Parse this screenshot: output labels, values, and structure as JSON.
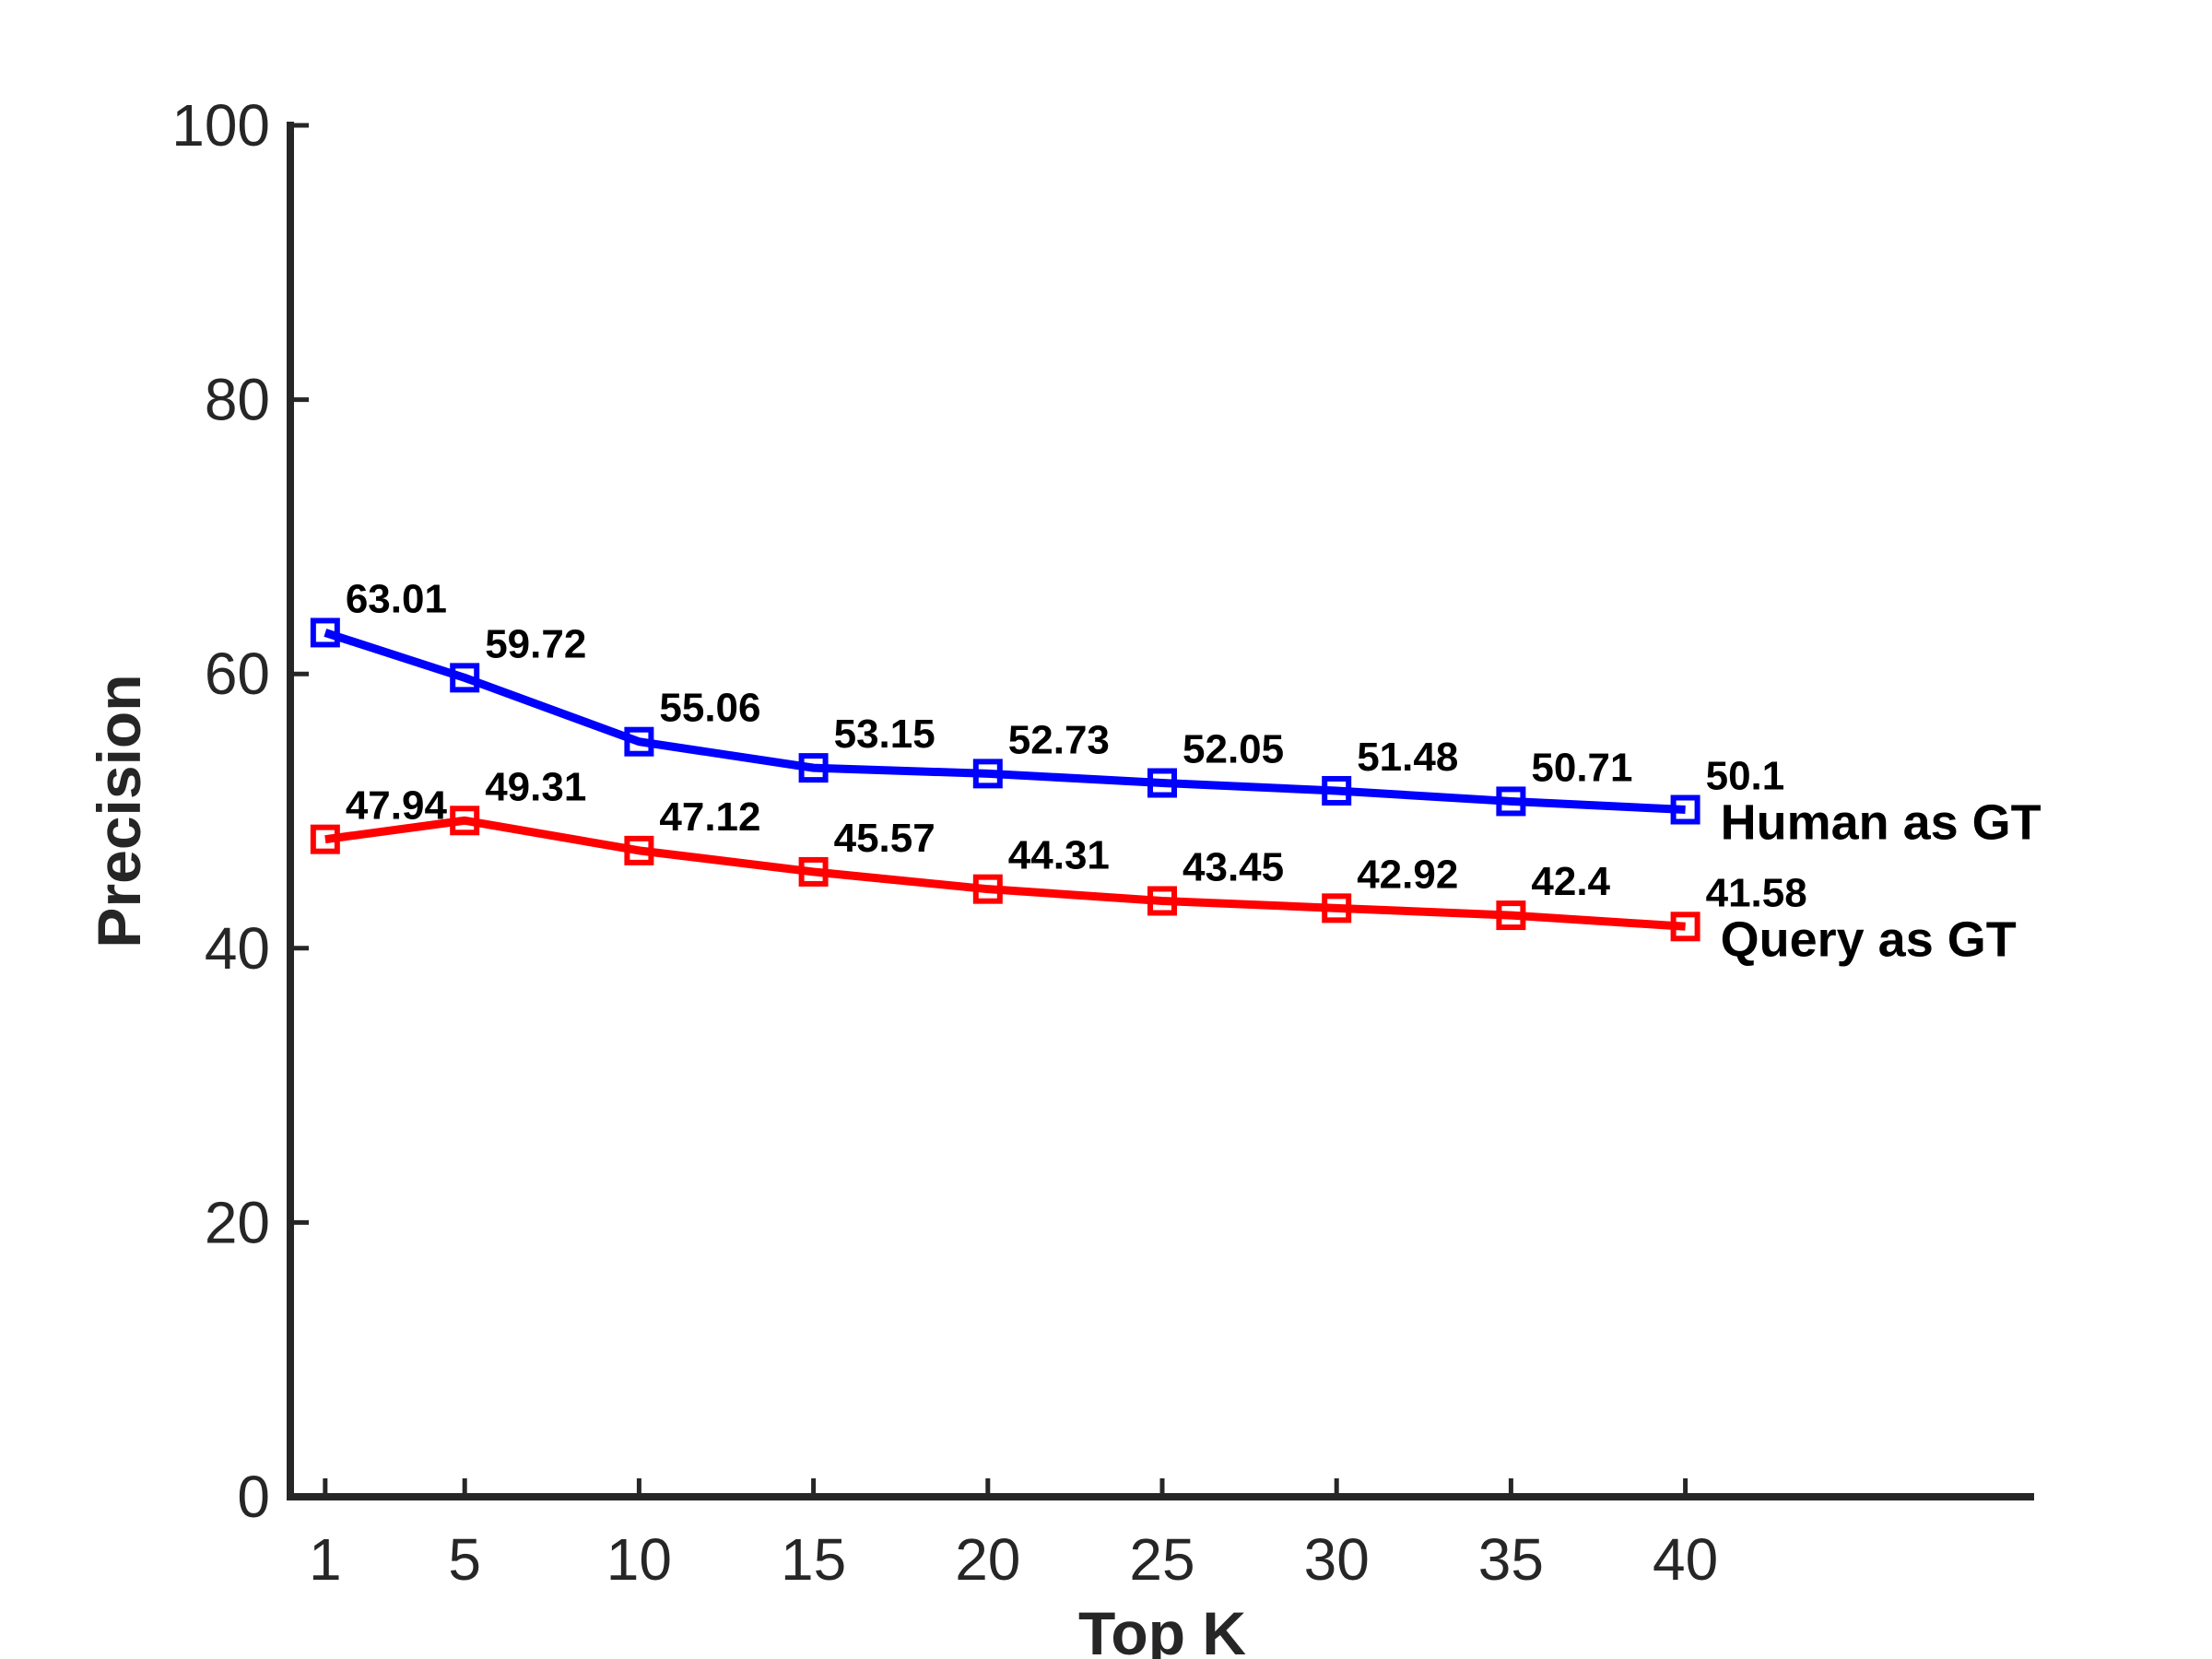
{
  "chart_data": {
    "type": "line",
    "xlabel": "Top K",
    "ylabel": "Precision",
    "x": [
      1,
      5,
      10,
      15,
      20,
      25,
      30,
      35,
      40
    ],
    "xlim": [
      0,
      50
    ],
    "ylim": [
      0,
      100
    ],
    "yticks": [
      0,
      20,
      40,
      60,
      80,
      100
    ],
    "grid": false,
    "series": [
      {
        "name": "Human as GT",
        "color": "#0000ff",
        "marker": "square",
        "values": [
          63.01,
          59.72,
          55.06,
          53.15,
          52.73,
          52.05,
          51.48,
          50.71,
          50.1
        ],
        "labels": [
          "63.01",
          "59.72",
          "55.06",
          "53.15",
          "52.73",
          "52.05",
          "51.48",
          "50.71",
          "50.1"
        ]
      },
      {
        "name": "Query as GT",
        "color": "#ff0000",
        "marker": "square",
        "values": [
          47.94,
          49.31,
          47.12,
          45.57,
          44.31,
          43.45,
          42.92,
          42.4,
          41.58
        ],
        "labels": [
          "47.94",
          "49.31",
          "47.12",
          "45.57",
          "44.31",
          "43.45",
          "42.92",
          "42.4",
          "41.58"
        ]
      }
    ]
  }
}
